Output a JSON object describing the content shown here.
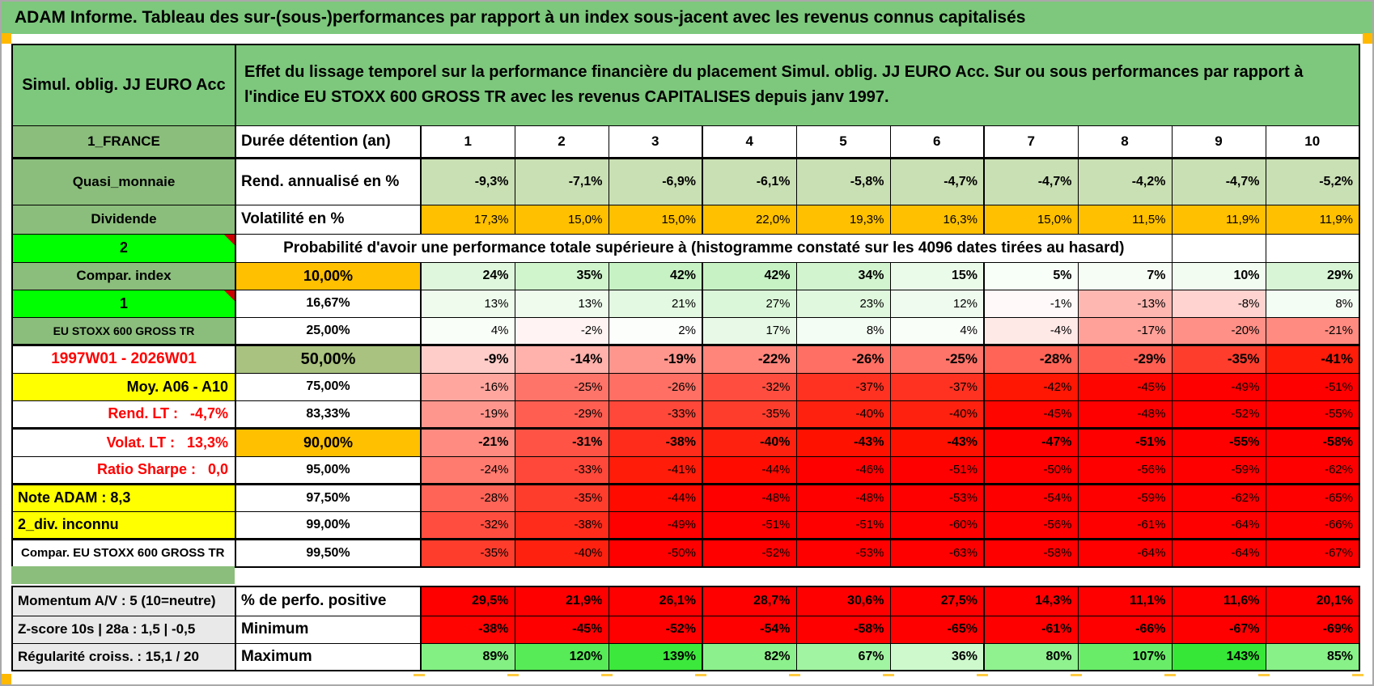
{
  "title": "ADAM Informe. Tableau des sur-(sous-)performances par rapport à un index sous-jacent avec les revenus connus capitalisés",
  "colors": {
    "title_green": "#7DC87D",
    "label_green": "#8BBE7C",
    "bright_green": "#00FF00",
    "orange": "#FFC000",
    "yellow": "#FFFF00",
    "red_text": "#FF0000",
    "rend_row_bg": "#C9DFB4",
    "pct50_bg": "#A9C27F",
    "gray_bg": "#E9E9E9",
    "solid_red": "#FF0000",
    "marker_orange": "#FFB900"
  },
  "table": {
    "instrument": "Simul. oblig. JJ EURO Acc",
    "description": "Effet du lissage temporel sur la performance financière du placement Simul. oblig. JJ EURO Acc. Sur ou sous performances par rapport à l'indice EU STOXX 600 GROSS TR avec les revenus CAPITALISES depuis janv 1997.",
    "main_rows": [
      {
        "kind": "duree",
        "a": "1_FRANCE",
        "a_style": "green",
        "b": "Durée détention (an)",
        "b_style": "label",
        "values": [
          "1",
          "2",
          "3",
          "4",
          "5",
          "6",
          "7",
          "8",
          "9",
          "10"
        ],
        "scheme": "plain",
        "center": true,
        "bold": true
      },
      {
        "kind": "rend",
        "a": "Quasi_monnaie",
        "a_style": "green",
        "b": "Rend. annualisé en %",
        "b_style": "label",
        "values": [
          "-9,3%",
          "-7,1%",
          "-6,9%",
          "-6,1%",
          "-5,8%",
          "-4,7%",
          "-4,7%",
          "-4,2%",
          "-4,7%",
          "-5,2%"
        ],
        "scheme": "fixed",
        "bg": "rend_row_bg",
        "bold": true
      },
      {
        "kind": "vol",
        "a": "Dividende",
        "a_style": "green",
        "b": "Volatilité en %",
        "b_style": "label",
        "values": [
          "17,3%",
          "15,0%",
          "15,0%",
          "22,0%",
          "19,3%",
          "16,3%",
          "15,0%",
          "11,5%",
          "11,9%",
          "11,9%"
        ],
        "scheme": "fixed",
        "bg": "orange",
        "bold": false
      },
      {
        "kind": "prob",
        "a": "2",
        "a_style": "bright",
        "span_text": "Probabilité d'avoir une performance totale supérieure à (histogramme constaté sur les 4096 dates tirées au hasard)",
        "empty_cells": 2
      },
      {
        "kind": "pct",
        "a": "Compar. index",
        "a_style": "green",
        "b": "10,00%",
        "b_style": "pct-orange",
        "values": [
          24,
          35,
          42,
          42,
          34,
          15,
          5,
          7,
          10,
          29
        ],
        "scheme": "pastel",
        "bold": true
      },
      {
        "kind": "pct",
        "a": "1",
        "a_style": "bright",
        "b": "16,67%",
        "b_style": "pct",
        "values": [
          13,
          13,
          21,
          27,
          23,
          12,
          -1,
          -13,
          -8,
          8
        ],
        "scheme": "pastel",
        "bold": false
      },
      {
        "kind": "pct",
        "a": "EU STOXX 600 GROSS TR",
        "a_style": "green-sm",
        "b": "25,00%",
        "b_style": "pct",
        "values": [
          4,
          -2,
          2,
          17,
          8,
          4,
          -4,
          -17,
          -20,
          -21
        ],
        "scheme": "pastel",
        "bold": false
      },
      {
        "kind": "pct",
        "a": "1997W01 - 2026W01",
        "a_style": "red-center",
        "b": "50,00%",
        "b_style": "pct-big",
        "values": [
          -9,
          -14,
          -19,
          -22,
          -26,
          -25,
          -28,
          -29,
          -35,
          -41
        ],
        "scheme": "pastel",
        "bold": true,
        "big": true,
        "thick_top": true
      },
      {
        "kind": "pct",
        "a": "Moy. A06 - A10",
        "a_style": "yellow-right",
        "b": "75,00%",
        "b_style": "pct",
        "values": [
          -16,
          -25,
          -26,
          -32,
          -37,
          -37,
          -42,
          -45,
          -49,
          -51
        ],
        "scheme": "pastel",
        "bold": false
      },
      {
        "kind": "pct",
        "a": "Rend. LT :   -4,7%",
        "a_style": "red-right",
        "b": "83,33%",
        "b_style": "pct",
        "values": [
          -19,
          -29,
          -33,
          -35,
          -40,
          -40,
          -45,
          -48,
          -52,
          -55
        ],
        "scheme": "pastel",
        "bold": false
      },
      {
        "kind": "pct",
        "a": "Volat. LT :   13,3%",
        "a_style": "red-right",
        "b": "90,00%",
        "b_style": "pct-orange",
        "values": [
          -21,
          -31,
          -38,
          -40,
          -43,
          -43,
          -47,
          -51,
          -55,
          -58
        ],
        "scheme": "pastel",
        "bold": true,
        "thick_top": true
      },
      {
        "kind": "pct",
        "a": "Ratio Sharpe :   0,0",
        "a_style": "red-right",
        "b": "95,00%",
        "b_style": "pct",
        "values": [
          -24,
          -33,
          -41,
          -44,
          -46,
          -51,
          -50,
          -56,
          -59,
          -62
        ],
        "scheme": "pastel",
        "bold": false
      },
      {
        "kind": "pct",
        "a": "Note ADAM : 8,3",
        "a_style": "yellow-left",
        "b": "97,50%",
        "b_style": "pct",
        "values": [
          -28,
          -35,
          -44,
          -48,
          -48,
          -53,
          -54,
          -59,
          -62,
          -65
        ],
        "scheme": "pastel",
        "bold": false,
        "thick_top": true
      },
      {
        "kind": "pct",
        "a": "2_div. inconnu",
        "a_style": "yellow-left",
        "b": "99,00%",
        "b_style": "pct",
        "values": [
          -32,
          -38,
          -49,
          -51,
          -51,
          -60,
          -56,
          -61,
          -64,
          -66
        ],
        "scheme": "pastel",
        "bold": false
      },
      {
        "kind": "pct",
        "a": "Compar. EU STOXX 600 GROSS TR",
        "a_style": "black-left",
        "b": "99,50%",
        "b_style": "pct",
        "values": [
          -35,
          -40,
          -50,
          -52,
          -53,
          -63,
          -58,
          -64,
          -64,
          -67
        ],
        "scheme": "pastel",
        "bold": false,
        "thick_top": true
      }
    ],
    "bottom_rows": [
      {
        "a": "Momentum A/V : 5 (10=neutre)",
        "b": "% de perfo. positive",
        "values": [
          "29,5%",
          "21,9%",
          "26,1%",
          "28,7%",
          "30,6%",
          "27,5%",
          "14,3%",
          "11,1%",
          "11,6%",
          "20,1%"
        ],
        "scheme": "solid_red",
        "bold": true
      },
      {
        "a": "Z-score 10s | 28a : 1,5 | -0,5",
        "b": "Minimum",
        "values": [
          -38,
          -45,
          -52,
          -54,
          -58,
          -65,
          -61,
          -66,
          -67,
          -69
        ],
        "scheme": "strong_red",
        "bold": true
      },
      {
        "a": "Régularité croiss. : 15,1 / 20",
        "b": "Maximum",
        "values": [
          89,
          120,
          139,
          82,
          67,
          36,
          80,
          107,
          143,
          85
        ],
        "scheme": "strong_green",
        "bold": true
      }
    ]
  }
}
